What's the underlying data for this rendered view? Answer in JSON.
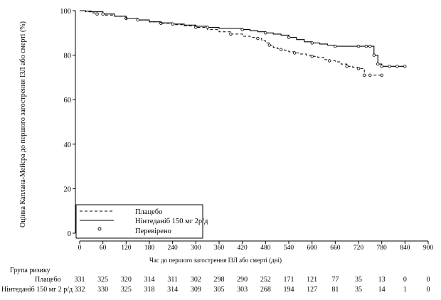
{
  "chart_data": {
    "type": "line",
    "title": "",
    "xlabel": "Час до першого загострення ІЗЛ або смерті (дні)",
    "ylabel": "Оцінка Каплана-Мейєра до першого загострення ІЗЛ або смерті (%)",
    "xlim": [
      0,
      900
    ],
    "ylim": [
      0,
      100
    ],
    "xticks": [
      0,
      60,
      120,
      180,
      240,
      300,
      360,
      420,
      480,
      540,
      600,
      660,
      720,
      780,
      840,
      900
    ],
    "yticks": [
      0,
      20,
      40,
      60,
      80,
      100
    ],
    "grid": false,
    "legend_position": "bottom-left",
    "series": [
      {
        "name": "Плацебо",
        "style": "dashed",
        "x": [
          0,
          15,
          30,
          45,
          60,
          90,
          120,
          150,
          180,
          210,
          240,
          270,
          300,
          330,
          360,
          390,
          420,
          440,
          460,
          470,
          480,
          490,
          500,
          510,
          520,
          530,
          540,
          555,
          570,
          585,
          600,
          615,
          630,
          645,
          660,
          675,
          690,
          705,
          720,
          735,
          750,
          780
        ],
        "y": [
          100,
          99.5,
          99,
          98.5,
          98,
          97.5,
          96.5,
          95.8,
          95,
          94.3,
          93.7,
          93.2,
          92.5,
          91.5,
          90.5,
          89.5,
          88.5,
          88,
          87.5,
          86.5,
          85.5,
          84.5,
          83.5,
          83,
          82.5,
          82,
          81.5,
          81,
          80.5,
          80,
          79.5,
          79,
          78,
          77.5,
          77,
          76,
          75,
          74.5,
          74,
          71,
          71,
          71
        ]
      },
      {
        "name": "Нінтеданіб 150 мг 2р/д",
        "style": "solid",
        "x": [
          0,
          15,
          30,
          60,
          90,
          120,
          150,
          180,
          210,
          240,
          270,
          300,
          330,
          360,
          400,
          420,
          440,
          460,
          480,
          500,
          520,
          540,
          560,
          580,
          600,
          620,
          640,
          660,
          680,
          700,
          720,
          740,
          750,
          760,
          770,
          780,
          800,
          820,
          840
        ],
        "y": [
          100,
          99.8,
          99.5,
          98.5,
          97.5,
          96.5,
          95.8,
          95,
          94.5,
          94,
          93.5,
          93,
          92.5,
          92,
          92,
          91.5,
          91,
          90.5,
          90,
          89.5,
          89,
          88,
          87,
          86,
          85.5,
          85,
          84.5,
          84,
          84,
          84,
          84,
          84,
          84,
          80,
          76,
          75,
          75,
          75,
          75
        ]
      }
    ],
    "censored_label": "Перевірено",
    "risk_table": {
      "header": "Група ризику",
      "times": [
        0,
        60,
        120,
        180,
        240,
        300,
        360,
        420,
        480,
        540,
        600,
        660,
        720,
        780,
        840,
        900
      ],
      "rows": [
        {
          "label": "Плацебо",
          "values": [
            "331",
            "325",
            "320",
            "314",
            "311",
            "302",
            "298",
            "290",
            "252",
            "171",
            "121",
            "77",
            "35",
            "13",
            "0",
            "0"
          ]
        },
        {
          "label": "Нінтеданіб 150 мг 2 р/д",
          "values": [
            "332",
            "330",
            "325",
            "318",
            "314",
            "309",
            "305",
            "303",
            "268",
            "194",
            "127",
            "81",
            "35",
            "14",
            "1",
            "0"
          ]
        }
      ]
    }
  }
}
